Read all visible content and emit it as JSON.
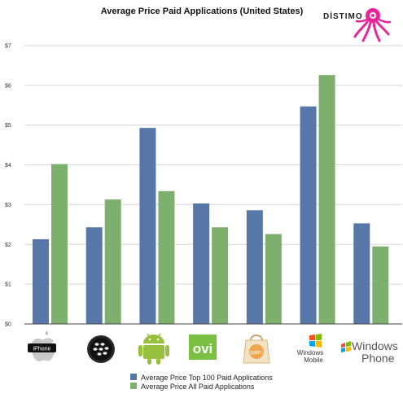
{
  "brand": {
    "name": "DİSTIMO",
    "accent": "#e8259a"
  },
  "chart_data": {
    "type": "bar",
    "title": "Average Price Paid Applications (United States)",
    "xlabel": "",
    "ylabel": "",
    "categories": [
      "iPhone",
      "BlackBerry",
      "Android",
      "Ovi",
      "Palm",
      "Windows Mobile",
      "Windows Phone"
    ],
    "series": [
      {
        "name": "Average Price Top 100 Paid Applications",
        "color": "#5677a8",
        "values": [
          2.13,
          2.43,
          4.93,
          3.03,
          2.86,
          5.47,
          2.53
        ]
      },
      {
        "name": "Average Price All Paid Applications",
        "color": "#7eb06d",
        "values": [
          4.02,
          3.13,
          3.34,
          2.43,
          2.26,
          6.26,
          1.95
        ]
      }
    ],
    "yticks": [
      "$0",
      "$1",
      "$2",
      "$3",
      "$4",
      "$5",
      "$6",
      "$7"
    ],
    "ylim": [
      0,
      7
    ],
    "grid": true,
    "legend_position": "bottom"
  },
  "icons": {
    "iphone_label": "iPhone",
    "ovi_label": "ovi",
    "palm_label": "palm",
    "winmobile_line1": "Windows",
    "winmobile_line2": "Mobile",
    "winphone_line1": "Windows",
    "winphone_line2": "Phone"
  }
}
